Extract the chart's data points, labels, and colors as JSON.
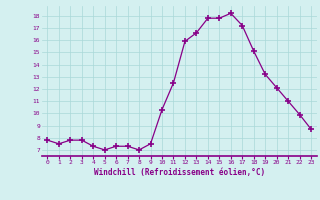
{
  "x": [
    0,
    1,
    2,
    3,
    4,
    5,
    6,
    7,
    8,
    9,
    10,
    11,
    12,
    13,
    14,
    15,
    16,
    17,
    18,
    19,
    20,
    21,
    22,
    23
  ],
  "y": [
    7.8,
    7.5,
    7.8,
    7.8,
    7.3,
    7.0,
    7.3,
    7.3,
    7.0,
    7.5,
    10.3,
    12.5,
    15.9,
    16.6,
    17.8,
    17.8,
    18.2,
    17.2,
    15.1,
    13.2,
    12.1,
    11.0,
    9.9,
    8.7
  ],
  "line_color": "#880088",
  "marker": "+",
  "marker_size": 4,
  "marker_lw": 1.2,
  "bg_color": "#d4f0f0",
  "grid_color": "#aad8d8",
  "spine_color": "#880088",
  "xlabel": "Windchill (Refroidissement éolien,°C)",
  "xlabel_color": "#880088",
  "tick_color": "#880088",
  "ylim": [
    6.5,
    18.8
  ],
  "xlim": [
    -0.5,
    23.5
  ],
  "yticks": [
    7,
    8,
    9,
    10,
    11,
    12,
    13,
    14,
    15,
    16,
    17,
    18
  ],
  "xticks": [
    0,
    1,
    2,
    3,
    4,
    5,
    6,
    7,
    8,
    9,
    10,
    11,
    12,
    13,
    14,
    15,
    16,
    17,
    18,
    19,
    20,
    21,
    22,
    23
  ]
}
